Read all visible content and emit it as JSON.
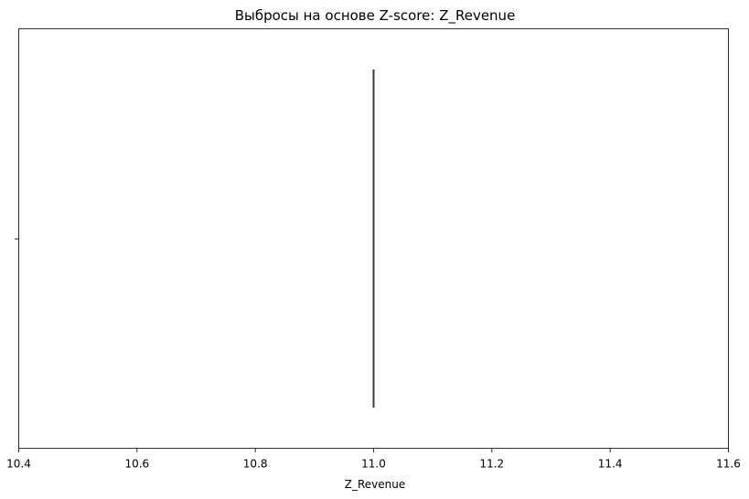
{
  "chart_data": {
    "type": "box",
    "title": "Выбросы на основе Z-score: Z_Revenue",
    "xlabel": "Z_Revenue",
    "ylabel": "",
    "orientation": "horizontal",
    "xlim": [
      10.4,
      11.6
    ],
    "xticks": [
      "10.4",
      "10.6",
      "10.8",
      "11.0",
      "11.2",
      "11.4",
      "11.6"
    ],
    "xtick_values": [
      10.4,
      10.6,
      10.8,
      11.0,
      11.2,
      11.4,
      11.6
    ],
    "series": [
      {
        "values": [
          11.0
        ],
        "min": 11.0,
        "q1": 11.0,
        "median": 11.0,
        "q3": 11.0,
        "max": 11.0
      }
    ],
    "grid": false,
    "colors": {
      "box": "#3a3a3a",
      "axis": "#000000"
    }
  }
}
